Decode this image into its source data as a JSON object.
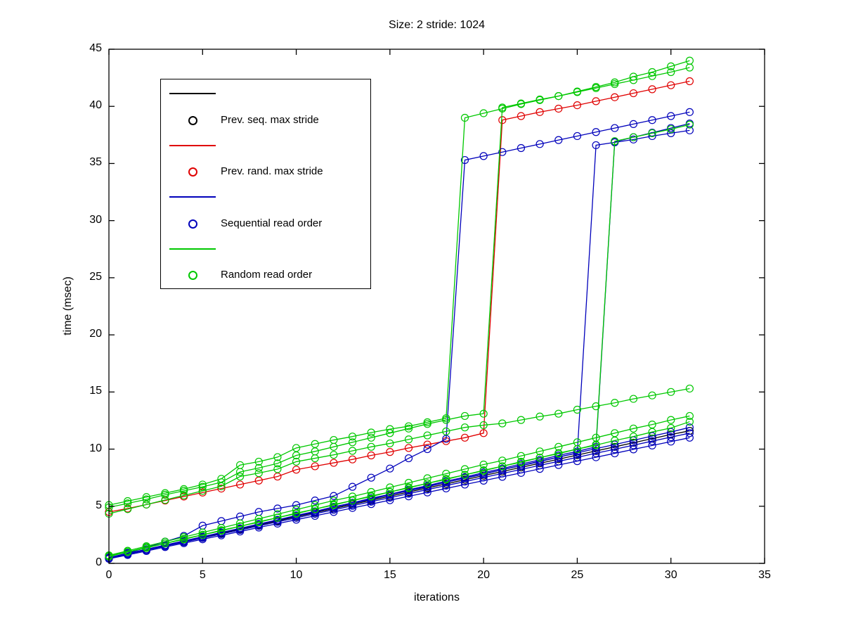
{
  "title": "Size: 2 stride: 1024",
  "axes": {
    "xlabel": "iterations",
    "ylabel": "time (msec)",
    "x_ticks": [
      0,
      5,
      10,
      15,
      20,
      25,
      30,
      35
    ],
    "y_ticks": [
      0,
      5,
      10,
      15,
      20,
      25,
      30,
      35,
      40,
      45
    ]
  },
  "colors": {
    "black": "#000000",
    "red": "#e00000",
    "blue": "#0000bb",
    "green": "#00c800"
  },
  "legend": {
    "items": [
      {
        "label": "Prev. seq. max stride",
        "color": "black",
        "marker": "circle-icon"
      },
      {
        "label": "Prev. rand. max stride",
        "color": "red",
        "marker": "circle-icon"
      },
      {
        "label": "Sequential read order",
        "color": "blue",
        "marker": "circle-icon"
      },
      {
        "label": "Random read order",
        "color": "green",
        "marker": "circle-icon"
      }
    ]
  },
  "chart_data": {
    "type": "line",
    "title": "Size: 2 stride: 1024",
    "xlabel": "iterations",
    "ylabel": "time (msec)",
    "xlim": [
      0,
      35
    ],
    "ylim": [
      0,
      45
    ],
    "grid": false,
    "legend_position": "upper-left",
    "marker": "o",
    "x": [
      0,
      1,
      2,
      3,
      4,
      5,
      6,
      7,
      8,
      9,
      10,
      11,
      12,
      13,
      14,
      15,
      16,
      17,
      18,
      19,
      20,
      21,
      22,
      23,
      24,
      25,
      26,
      27,
      28,
      29,
      30,
      31
    ],
    "draw_order": [
      "prev_seq_max_stride",
      "prev_rand_max_stride",
      "seq_4",
      "seq_5",
      "seq_6",
      "seq_2",
      "seq_3",
      "seq_1",
      "rand_5",
      "rand_6",
      "rand_4",
      "rand_3",
      "rand_2",
      "rand_1"
    ],
    "series": [
      {
        "name": "prev_seq_max_stride",
        "legend": "Prev. seq. max stride",
        "color": "black",
        "values": [
          0.48,
          0.84,
          1.2,
          1.56,
          1.92,
          2.28,
          2.64,
          3.0,
          3.36,
          3.72,
          4.08,
          4.44,
          4.8,
          5.16,
          5.52,
          5.88,
          6.24,
          6.6,
          6.96,
          7.32,
          7.68,
          8.04,
          8.4,
          8.76,
          9.12,
          9.48,
          9.84,
          10.2,
          10.56,
          10.92,
          11.28,
          11.6
        ]
      },
      {
        "name": "prev_rand_max_stride",
        "legend": "Prev. rand. max stride",
        "color": "red",
        "values": [
          4.5,
          4.8,
          5.15,
          5.5,
          5.85,
          6.2,
          6.55,
          6.9,
          7.25,
          7.6,
          8.2,
          8.5,
          8.8,
          9.1,
          9.45,
          9.75,
          10.1,
          10.4,
          10.7,
          11.0,
          11.4,
          38.8,
          39.15,
          39.5,
          39.8,
          40.1,
          40.45,
          40.8,
          41.15,
          41.5,
          41.85,
          42.2
        ]
      },
      {
        "name": "seq_1",
        "legend": "Sequential read order",
        "color": "blue",
        "values": [
          0.5,
          0.9,
          1.4,
          1.9,
          2.4,
          3.3,
          3.7,
          4.1,
          4.5,
          4.8,
          5.1,
          5.5,
          5.9,
          6.7,
          7.5,
          8.3,
          9.2,
          10.0,
          10.9,
          35.3,
          35.65,
          36.0,
          36.35,
          36.7,
          37.05,
          37.4,
          37.75,
          38.1,
          38.45,
          38.8,
          39.15,
          39.5
        ]
      },
      {
        "name": "seq_2",
        "legend": "Sequential read order",
        "color": "blue",
        "values": [
          0.5,
          0.85,
          1.2,
          1.6,
          1.95,
          2.3,
          2.7,
          3.05,
          3.4,
          3.8,
          4.15,
          4.5,
          4.9,
          5.25,
          5.6,
          6.0,
          6.35,
          6.7,
          7.1,
          7.45,
          7.8,
          8.2,
          8.55,
          8.9,
          9.3,
          9.65,
          36.6,
          36.85,
          37.1,
          37.4,
          37.65,
          37.9
        ]
      },
      {
        "name": "seq_3",
        "legend": "Sequential read order",
        "color": "blue",
        "values": [
          0.45,
          0.8,
          1.2,
          1.55,
          1.95,
          2.3,
          2.7,
          3.05,
          3.45,
          3.8,
          4.2,
          4.55,
          4.95,
          5.3,
          5.7,
          6.05,
          6.45,
          6.8,
          7.2,
          7.55,
          7.95,
          8.3,
          8.7,
          9.05,
          9.45,
          9.8,
          10.2,
          36.9,
          37.3,
          37.7,
          38.1,
          38.5
        ]
      },
      {
        "name": "seq_4",
        "legend": "Sequential read order",
        "color": "blue",
        "values": [
          0.5,
          0.87,
          1.24,
          1.6,
          1.97,
          2.34,
          2.7,
          3.07,
          3.44,
          3.8,
          4.17,
          4.54,
          4.9,
          5.27,
          5.64,
          6.0,
          6.37,
          6.74,
          7.1,
          7.47,
          7.84,
          8.2,
          8.57,
          8.94,
          9.3,
          9.67,
          10.04,
          10.4,
          10.77,
          11.14,
          11.5,
          11.9
        ]
      },
      {
        "name": "seq_5",
        "legend": "Sequential read order",
        "color": "blue",
        "values": [
          0.45,
          0.8,
          1.16,
          1.51,
          1.86,
          2.22,
          2.57,
          2.92,
          3.28,
          3.63,
          3.98,
          4.34,
          4.69,
          5.04,
          5.4,
          5.75,
          6.1,
          6.46,
          6.81,
          7.16,
          7.52,
          7.87,
          8.22,
          8.58,
          8.93,
          9.28,
          9.64,
          9.99,
          10.34,
          10.7,
          11.05,
          11.4
        ]
      },
      {
        "name": "seq_6",
        "legend": "Sequential read order",
        "color": "blue",
        "values": [
          0.4,
          0.74,
          1.08,
          1.43,
          1.77,
          2.11,
          2.45,
          2.79,
          3.14,
          3.48,
          3.82,
          4.16,
          4.5,
          4.85,
          5.19,
          5.53,
          5.87,
          6.21,
          6.56,
          6.9,
          7.24,
          7.58,
          7.92,
          8.27,
          8.61,
          8.95,
          9.29,
          9.63,
          9.98,
          10.32,
          10.66,
          11.0
        ]
      },
      {
        "name": "rand_1",
        "legend": "Random read order",
        "color": "green",
        "values": [
          5.1,
          5.45,
          5.8,
          6.15,
          6.5,
          6.9,
          7.4,
          8.6,
          8.9,
          9.3,
          10.1,
          10.45,
          10.8,
          11.1,
          11.45,
          11.75,
          12.0,
          12.35,
          12.7,
          39.0,
          39.4,
          39.8,
          40.2,
          40.55,
          40.9,
          41.3,
          41.7,
          42.1,
          42.6,
          43.0,
          43.5,
          44.0
        ]
      },
      {
        "name": "rand_2",
        "legend": "Random read order",
        "color": "green",
        "values": [
          4.9,
          5.25,
          5.6,
          6.0,
          6.35,
          6.7,
          7.1,
          8.0,
          8.35,
          8.75,
          9.45,
          9.8,
          10.2,
          10.6,
          11.0,
          11.4,
          11.8,
          12.2,
          12.55,
          12.9,
          13.1,
          39.9,
          40.25,
          40.6,
          40.9,
          41.25,
          41.6,
          41.95,
          42.3,
          42.65,
          43.0,
          43.4
        ]
      },
      {
        "name": "rand_3",
        "legend": "Random read order",
        "color": "green",
        "values": [
          4.35,
          4.75,
          5.15,
          5.55,
          5.95,
          6.35,
          6.75,
          7.6,
          7.9,
          8.25,
          8.9,
          9.2,
          9.5,
          9.85,
          10.2,
          10.5,
          10.85,
          11.2,
          11.55,
          11.9,
          12.1,
          12.25,
          12.55,
          12.85,
          13.1,
          13.45,
          13.75,
          14.05,
          14.4,
          14.7,
          15.0,
          15.3
        ]
      },
      {
        "name": "rand_4",
        "legend": "Random read order",
        "color": "green",
        "values": [
          0.65,
          1.0,
          1.4,
          1.75,
          2.15,
          2.5,
          2.9,
          3.25,
          3.65,
          4.0,
          4.4,
          4.75,
          5.15,
          5.5,
          5.9,
          6.25,
          6.65,
          7.0,
          7.4,
          7.75,
          8.15,
          8.5,
          8.9,
          9.25,
          9.65,
          10.0,
          10.4,
          36.95,
          37.3,
          37.65,
          38.0,
          38.4
        ]
      },
      {
        "name": "rand_5",
        "legend": "Random read order",
        "color": "green",
        "values": [
          0.7,
          1.1,
          1.5,
          1.9,
          2.3,
          2.7,
          3.1,
          3.5,
          3.9,
          4.3,
          4.7,
          5.1,
          5.5,
          5.85,
          6.25,
          6.65,
          7.05,
          7.45,
          7.85,
          8.25,
          8.65,
          9.0,
          9.4,
          9.8,
          10.2,
          10.6,
          11.0,
          11.4,
          11.8,
          12.15,
          12.55,
          12.9
        ]
      },
      {
        "name": "rand_6",
        "legend": "Random read order",
        "color": "green",
        "values": [
          0.6,
          1.0,
          1.35,
          1.75,
          2.1,
          2.5,
          2.85,
          3.25,
          3.6,
          4.0,
          4.35,
          4.75,
          5.1,
          5.5,
          5.85,
          6.25,
          6.6,
          7.0,
          7.35,
          7.75,
          8.1,
          8.5,
          8.85,
          9.25,
          9.6,
          10.0,
          10.35,
          10.75,
          11.1,
          11.5,
          11.85,
          12.4
        ]
      }
    ]
  }
}
